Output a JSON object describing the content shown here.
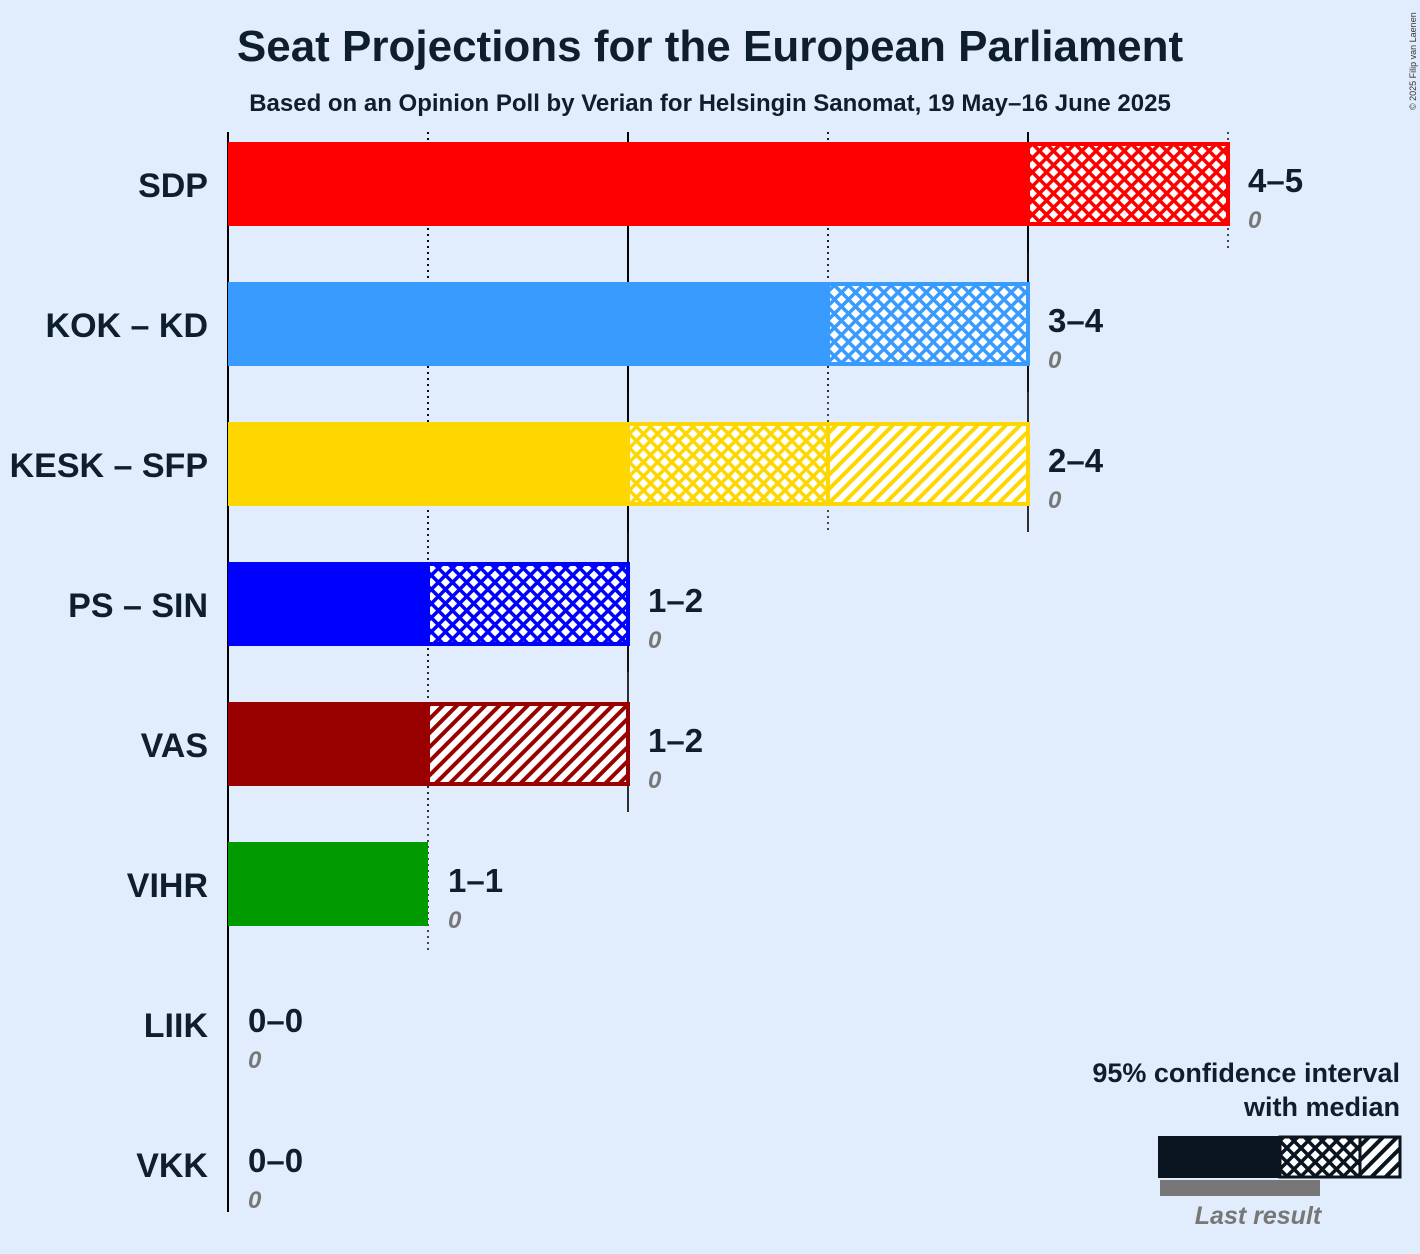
{
  "title": "Seat Projections for the European Parliament",
  "subtitle": "Based on an Opinion Poll by Verian for Helsingin Sanomat, 19 May–16 June 2025",
  "copyright": "© 2025 Filip van Laenen",
  "legend": {
    "title_line1": "95% confidence interval",
    "title_line2": "with median",
    "last_result": "Last result"
  },
  "chart_data": {
    "type": "bar",
    "orientation": "horizontal",
    "title": "Seat Projections for the European Parliament",
    "xlim": [
      0,
      5
    ],
    "grid": "dotted at each seat; solid at even seats",
    "series": [
      {
        "name": "SDP",
        "color": "#ff0000",
        "low": 4,
        "median": 4,
        "high": 5,
        "range_label": "4–5",
        "last_result": 0,
        "last_result_label": "0"
      },
      {
        "name": "KOK – KD",
        "color": "#3a9bff",
        "low": 3,
        "median": 4,
        "high": 4,
        "range_label": "3–4",
        "last_result": 0,
        "last_result_label": "0"
      },
      {
        "name": "KESK – SFP",
        "color": "#ffd700",
        "low": 2,
        "median": 3,
        "high": 4,
        "range_label": "2–4",
        "last_result": 0,
        "last_result_label": "0"
      },
      {
        "name": "PS – SIN",
        "color": "#0000ff",
        "low": 1,
        "median": 2,
        "high": 2,
        "range_label": "1–2",
        "last_result": 0,
        "last_result_label": "0"
      },
      {
        "name": "VAS",
        "color": "#990000",
        "low": 1,
        "median": 1,
        "high": 2,
        "range_label": "1–2",
        "last_result": 0,
        "last_result_label": "0"
      },
      {
        "name": "VIHR",
        "color": "#009900",
        "low": 1,
        "median": 1,
        "high": 1,
        "range_label": "1–1",
        "last_result": 0,
        "last_result_label": "0"
      },
      {
        "name": "LIIK",
        "color": "#888888",
        "low": 0,
        "median": 0,
        "high": 0,
        "range_label": "0–0",
        "last_result": 0,
        "last_result_label": "0"
      },
      {
        "name": "VKK",
        "color": "#888888",
        "low": 0,
        "median": 0,
        "high": 0,
        "range_label": "0–0",
        "last_result": 0,
        "last_result_label": "0"
      }
    ]
  }
}
